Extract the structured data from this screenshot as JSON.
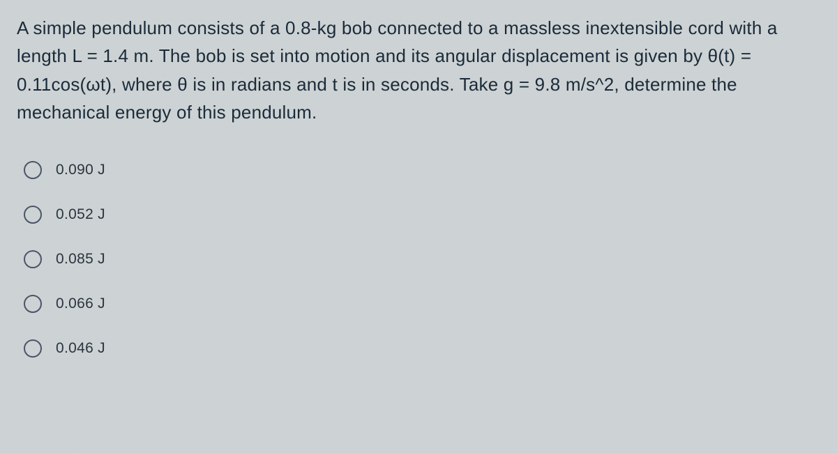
{
  "question": {
    "text": "A simple pendulum consists of a 0.8-kg bob connected to a massless inextensible cord with a length L = 1.4 m. The bob is set into motion and its angular displacement is given by θ(t) = 0.11cos(ωt), where θ is in radians and t is in seconds. Take g = 9.8 m/s^2, determine the mechanical energy of this pendulum.",
    "font_size": 26,
    "text_color": "#1a2b3a"
  },
  "options": [
    {
      "label": "0.090 J"
    },
    {
      "label": "0.052 J"
    },
    {
      "label": "0.085 J"
    },
    {
      "label": "0.066 J"
    },
    {
      "label": "0.046 J"
    }
  ],
  "styling": {
    "background_color": "#cdd2d4",
    "option_font_size": 21,
    "option_text_color": "#2a3540",
    "radio_border_color": "#4a5568",
    "radio_size": 26
  }
}
